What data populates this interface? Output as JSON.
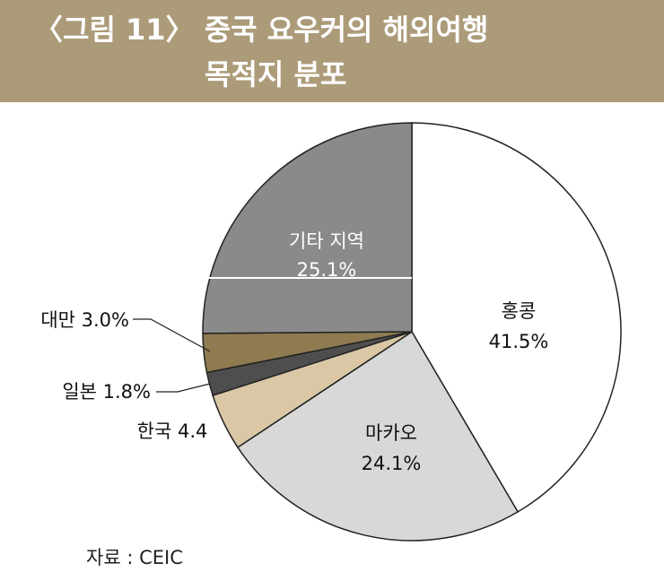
{
  "title": {
    "line1": "〈그림 11〉 중국 요우커의 해외여행",
    "line2": "목적지 분포"
  },
  "colors": {
    "title_bar": "#ac9b79",
    "title_text": "#ffffff"
  },
  "chart_data": {
    "type": "pie",
    "title": "〈그림 11〉 중국 요우커의 해외여행 목적지 분포",
    "slices": [
      {
        "label": "홍콩",
        "value": 41.5,
        "value_label": "41.5%",
        "color": "#ffffff"
      },
      {
        "label": "마카오",
        "value": 24.1,
        "value_label": "24.1%",
        "color": "#d8d8d8"
      },
      {
        "label": "한국",
        "value": 4.4,
        "value_label": "4.4",
        "color": "#d9c7a6"
      },
      {
        "label": "일본",
        "value": 1.8,
        "value_label": "1.8%",
        "color": "#4e4e4e"
      },
      {
        "label": "대만",
        "value": 3.0,
        "value_label": "3.0%",
        "color": "#8f7a52"
      },
      {
        "label": "기타 지역",
        "value": 25.1,
        "value_label": "25.1%",
        "color": "#8a8a8a"
      }
    ]
  },
  "source": "자료 : CEIC"
}
